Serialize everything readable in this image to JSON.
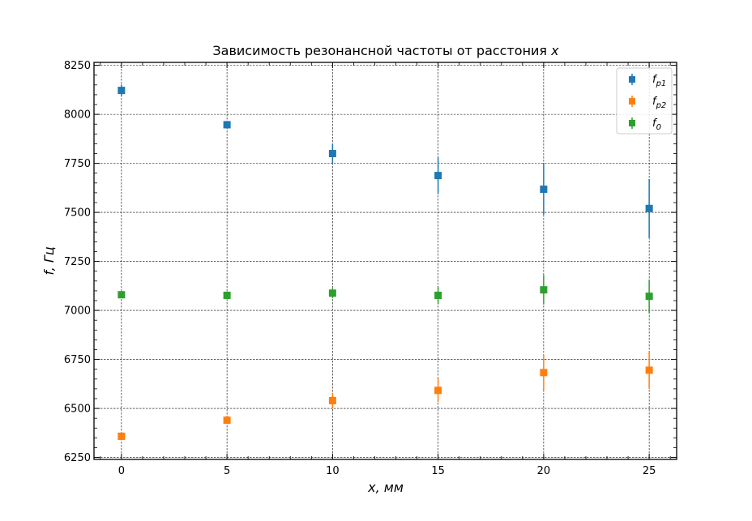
{
  "chart_data": {
    "type": "scatter",
    "title": "Зависимость резонансной частоты от расстония ",
    "title_var": "x",
    "xlabel_var": "x",
    "xlabel_unit": ", мм",
    "ylabel_var": "f",
    "ylabel_unit": ", Гц",
    "xlim": [
      -1.3,
      26.3
    ],
    "ylim": [
      6240,
      8265
    ],
    "xticks": [
      0,
      5,
      10,
      15,
      20,
      25
    ],
    "xtick_labels": [
      "0",
      "5",
      "10",
      "15",
      "20",
      "25"
    ],
    "yticks": [
      6250,
      6500,
      6750,
      7000,
      7250,
      7500,
      7750,
      8000,
      8250
    ],
    "ytick_labels": [
      "6250",
      "6500",
      "6750",
      "7000",
      "7250",
      "7500",
      "7750",
      "8000",
      "8250"
    ],
    "grid": true,
    "legend_position": "top-right",
    "x": [
      0,
      5,
      10,
      15,
      20,
      25
    ],
    "series": [
      {
        "name": "f_p1",
        "legend_main": "f",
        "legend_sub": "p1",
        "color": "#1f77b4",
        "y": [
          8122,
          7947,
          7800,
          7688,
          7618,
          7520
        ],
        "yerr": [
          30,
          10,
          50,
          95,
          130,
          150
        ]
      },
      {
        "name": "f_p2",
        "legend_main": "f",
        "legend_sub": "p2",
        "color": "#ff7f0e",
        "y": [
          6358,
          6440,
          6540,
          6592,
          6683,
          6695
        ],
        "yerr": [
          15,
          10,
          40,
          60,
          90,
          95
        ]
      },
      {
        "name": "f_0",
        "legend_main": "f",
        "legend_sub": "0",
        "color": "#2ca02c",
        "y": [
          7080,
          7077,
          7088,
          7077,
          7105,
          7072
        ],
        "yerr": [
          15,
          15,
          25,
          45,
          75,
          85
        ]
      }
    ]
  }
}
